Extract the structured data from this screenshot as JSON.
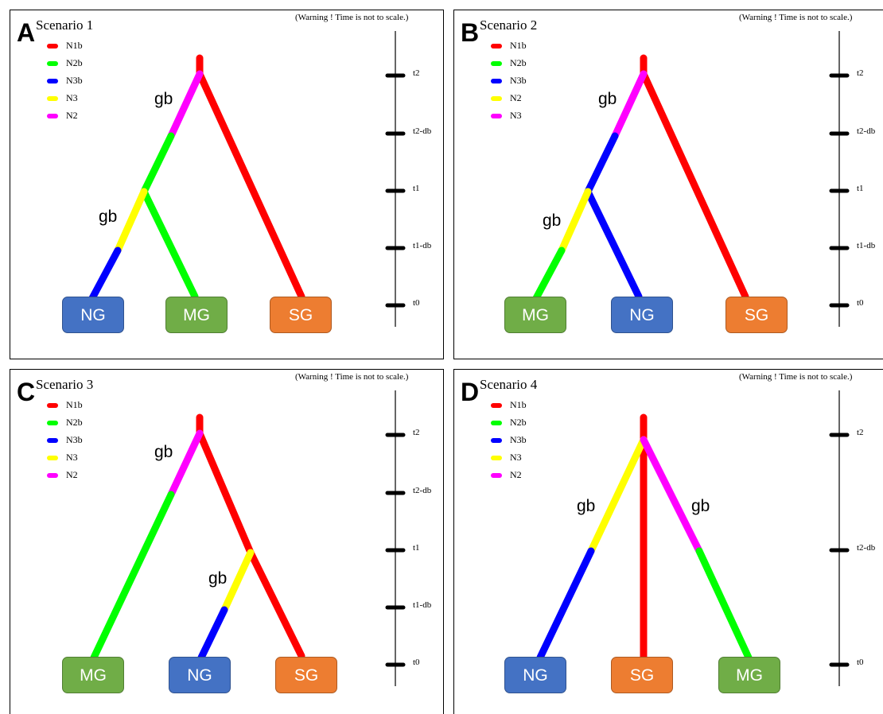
{
  "warning": "(Warning ! Time is not to scale.)",
  "gb_label": "gb",
  "colors": {
    "N1b": "#ff0000",
    "N2b": "#00ff00",
    "N3b": "#0000ff",
    "yellow": "#ffff00",
    "magenta": "#ff00ff",
    "NG": "#4472c4",
    "MG": "#70ad47",
    "SG": "#ed7d31"
  },
  "panels": [
    {
      "letter": "A",
      "title": "Scenario 1",
      "legend": [
        {
          "label": "N1b",
          "color": "#ff0000"
        },
        {
          "label": "N2b",
          "color": "#00ff00"
        },
        {
          "label": "N3b",
          "color": "#0000ff"
        },
        {
          "label": "N3",
          "color": "#ffff00"
        },
        {
          "label": "N2",
          "color": "#ff00ff"
        }
      ],
      "axis_ticks": [
        "t2",
        "t2-db",
        "t1",
        "t1-db",
        "t0"
      ],
      "taxa": [
        {
          "label": "NG",
          "color": "#4472c4"
        },
        {
          "label": "MG",
          "color": "#70ad47"
        },
        {
          "label": "SG",
          "color": "#ed7d31"
        }
      ]
    },
    {
      "letter": "B",
      "title": "Scenario 2",
      "legend": [
        {
          "label": "N1b",
          "color": "#ff0000"
        },
        {
          "label": "N2b",
          "color": "#00ff00"
        },
        {
          "label": "N3b",
          "color": "#0000ff"
        },
        {
          "label": "N2",
          "color": "#ffff00"
        },
        {
          "label": "N3",
          "color": "#ff00ff"
        }
      ],
      "axis_ticks": [
        "t2",
        "t2-db",
        "t1",
        "t1-db",
        "t0"
      ],
      "taxa": [
        {
          "label": "MG",
          "color": "#70ad47"
        },
        {
          "label": "NG",
          "color": "#4472c4"
        },
        {
          "label": "SG",
          "color": "#ed7d31"
        }
      ]
    },
    {
      "letter": "C",
      "title": "Scenario 3",
      "legend": [
        {
          "label": "N1b",
          "color": "#ff0000"
        },
        {
          "label": "N2b",
          "color": "#00ff00"
        },
        {
          "label": "N3b",
          "color": "#0000ff"
        },
        {
          "label": "N3",
          "color": "#ffff00"
        },
        {
          "label": "N2",
          "color": "#ff00ff"
        }
      ],
      "axis_ticks": [
        "t2",
        "t2-db",
        "t1",
        "t1-db",
        "t0"
      ],
      "taxa": [
        {
          "label": "MG",
          "color": "#70ad47"
        },
        {
          "label": "NG",
          "color": "#4472c4"
        },
        {
          "label": "SG",
          "color": "#ed7d31"
        }
      ]
    },
    {
      "letter": "D",
      "title": "Scenario 4",
      "legend": [
        {
          "label": "N1b",
          "color": "#ff0000"
        },
        {
          "label": "N2b",
          "color": "#00ff00"
        },
        {
          "label": "N3b",
          "color": "#0000ff"
        },
        {
          "label": "N3",
          "color": "#ffff00"
        },
        {
          "label": "N2",
          "color": "#ff00ff"
        }
      ],
      "axis_ticks": [
        "t2",
        "t2-db",
        "t0"
      ],
      "taxa": [
        {
          "label": "NG",
          "color": "#4472c4"
        },
        {
          "label": "SG",
          "color": "#ed7d31"
        },
        {
          "label": "MG",
          "color": "#70ad47"
        }
      ]
    }
  ]
}
